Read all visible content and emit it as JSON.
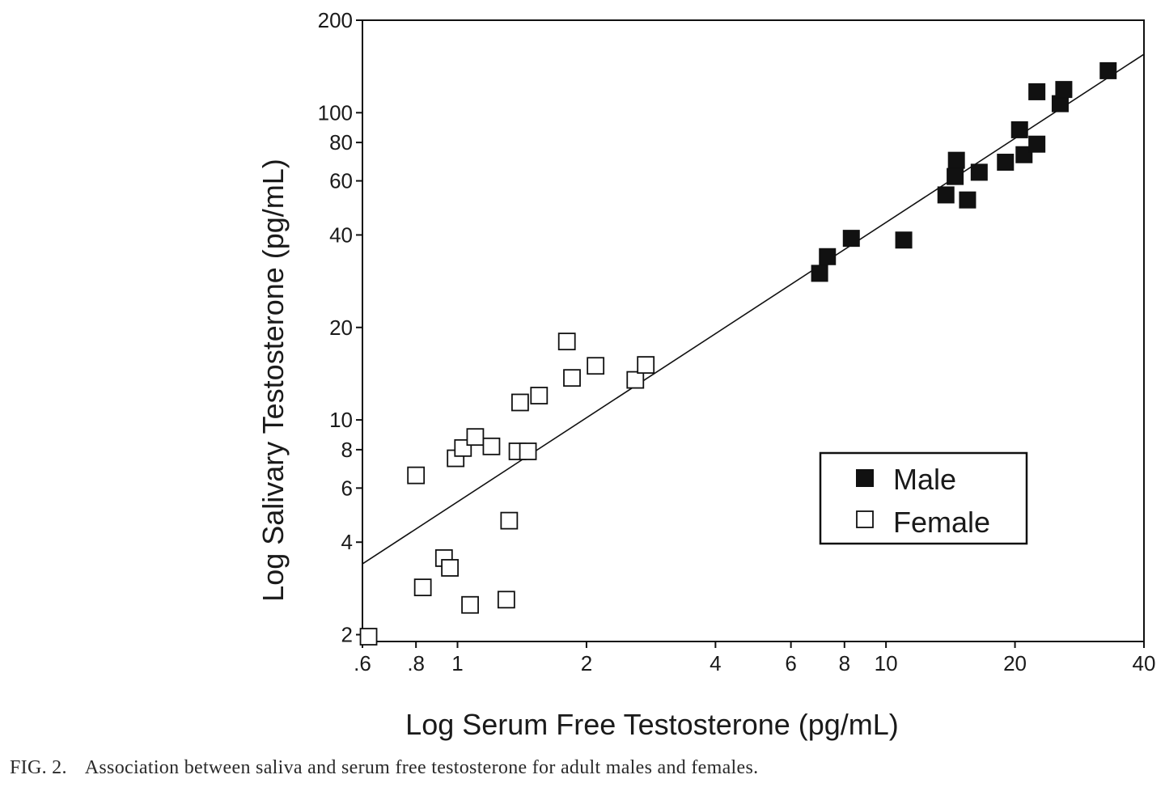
{
  "chart_data": {
    "type": "scatter",
    "x_scale": "log",
    "y_scale": "log",
    "xlabel": "Log Serum Free Testosterone (pg/mL)",
    "ylabel": "Log Salivary Testosterone (pg/mL)",
    "xlim": [
      0.6,
      40
    ],
    "ylim": [
      1.9,
      200
    ],
    "x_ticks": [
      {
        "value": 0.6,
        "label": ".6"
      },
      {
        "value": 0.8,
        "label": ".8"
      },
      {
        "value": 1,
        "label": "1"
      },
      {
        "value": 2,
        "label": "2"
      },
      {
        "value": 4,
        "label": "4"
      },
      {
        "value": 6,
        "label": "6"
      },
      {
        "value": 8,
        "label": "8"
      },
      {
        "value": 10,
        "label": "10"
      },
      {
        "value": 20,
        "label": "20"
      },
      {
        "value": 40,
        "label": "40"
      }
    ],
    "y_ticks": [
      {
        "value": 2,
        "label": "2"
      },
      {
        "value": 4,
        "label": "4"
      },
      {
        "value": 6,
        "label": "6"
      },
      {
        "value": 8,
        "label": "8"
      },
      {
        "value": 10,
        "label": "10"
      },
      {
        "value": 20,
        "label": "20"
      },
      {
        "value": 40,
        "label": "40"
      },
      {
        "value": 60,
        "label": "60"
      },
      {
        "value": 80,
        "label": "80"
      },
      {
        "value": 100,
        "label": "100"
      },
      {
        "value": 200,
        "label": "200"
      }
    ],
    "series": [
      {
        "name": "Male",
        "marker": "filled-square",
        "points": [
          [
            7.0,
            30
          ],
          [
            7.3,
            34
          ],
          [
            8.3,
            39
          ],
          [
            11.0,
            38.5
          ],
          [
            13.8,
            54
          ],
          [
            14.5,
            62
          ],
          [
            14.6,
            70
          ],
          [
            15.5,
            52
          ],
          [
            16.5,
            64
          ],
          [
            19.0,
            69
          ],
          [
            20.5,
            88
          ],
          [
            21.0,
            73
          ],
          [
            22.5,
            79
          ],
          [
            22.5,
            117
          ],
          [
            25.5,
            107
          ],
          [
            26.0,
            119
          ],
          [
            33.0,
            137
          ]
        ]
      },
      {
        "name": "Female",
        "marker": "open-square",
        "points": [
          [
            0.62,
            1.97
          ],
          [
            0.8,
            6.6
          ],
          [
            0.83,
            2.85
          ],
          [
            0.93,
            3.55
          ],
          [
            0.96,
            3.3
          ],
          [
            0.99,
            7.5
          ],
          [
            1.03,
            8.1
          ],
          [
            1.07,
            2.5
          ],
          [
            1.1,
            8.8
          ],
          [
            1.2,
            8.2
          ],
          [
            1.3,
            2.6
          ],
          [
            1.32,
            4.7
          ],
          [
            1.38,
            7.9
          ],
          [
            1.4,
            11.4
          ],
          [
            1.46,
            7.9
          ],
          [
            1.55,
            12.0
          ],
          [
            1.8,
            18.0
          ],
          [
            1.85,
            13.7
          ],
          [
            2.1,
            15.0
          ],
          [
            2.6,
            13.5
          ],
          [
            2.75,
            15.1
          ]
        ]
      }
    ],
    "regression_line": {
      "x": [
        0.6,
        40
      ],
      "y": [
        3.4,
        155
      ]
    },
    "legend_position": "bottom-right",
    "colors": {
      "ink": "#111111",
      "background": "#ffffff"
    }
  },
  "caption": {
    "label": "FIG. 2.",
    "text": "Association between saliva and serum free testosterone for adult males and females."
  }
}
